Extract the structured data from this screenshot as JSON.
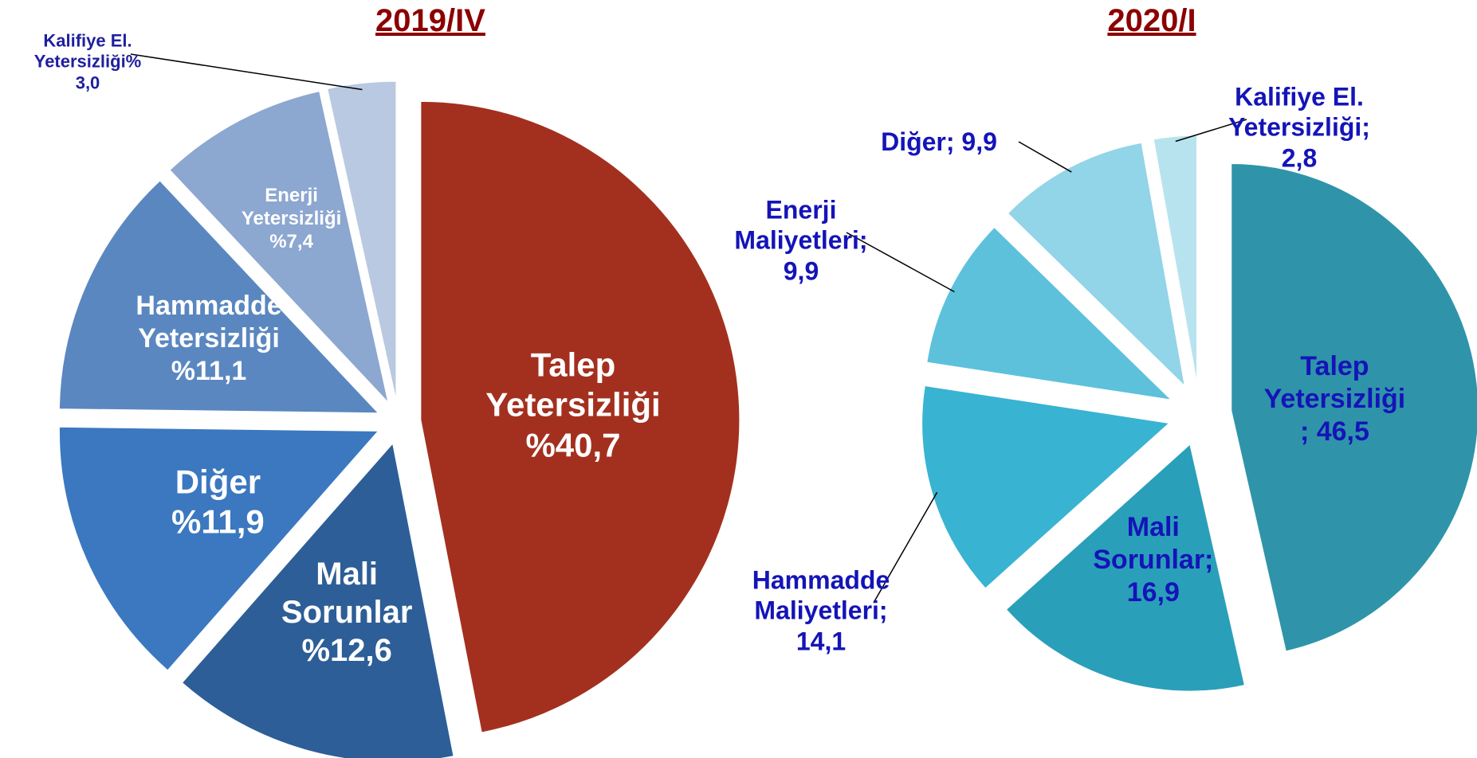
{
  "chart_data": [
    {
      "type": "pie",
      "title": "2019/IV",
      "categories": [
        "Talep Yetersizliği",
        "Mali Sorunlar",
        "Diğer",
        "Hammadde Yetersizliği",
        "Enerji Yetersizliği",
        "Kalifiye El. Yetersizliği%"
      ],
      "values": [
        40.7,
        12.6,
        11.9,
        11.1,
        7.4,
        3.0
      ],
      "value_labels": [
        "%40,7",
        "%12,6",
        "%11,9",
        "%11,1",
        "%7,4",
        "3,0"
      ],
      "colors": [
        "#a3301f",
        "#2d5e97",
        "#3b78c0",
        "#5a87c0",
        "#8ca7d0",
        "#b9c9e1"
      ]
    },
    {
      "type": "pie",
      "title": "2020/I",
      "categories": [
        "Talep Yetersizliği",
        "Mali Sorunlar;",
        "Hammadde Maliyetleri;",
        "Enerji Maliyetleri;",
        "Diğer;",
        "Kalifiye El. Yetersizliği;"
      ],
      "values": [
        46.5,
        16.9,
        14.1,
        9.9,
        9.9,
        2.8
      ],
      "value_labels": [
        "; 46,5",
        "16,9",
        "14,1",
        "9,9",
        "9,9",
        "2,8"
      ],
      "colors": [
        "#2f94a9",
        "#2a9fba",
        "#39b3d2",
        "#5dc1dc",
        "#92d4e8",
        "#b7e3ef"
      ]
    }
  ]
}
